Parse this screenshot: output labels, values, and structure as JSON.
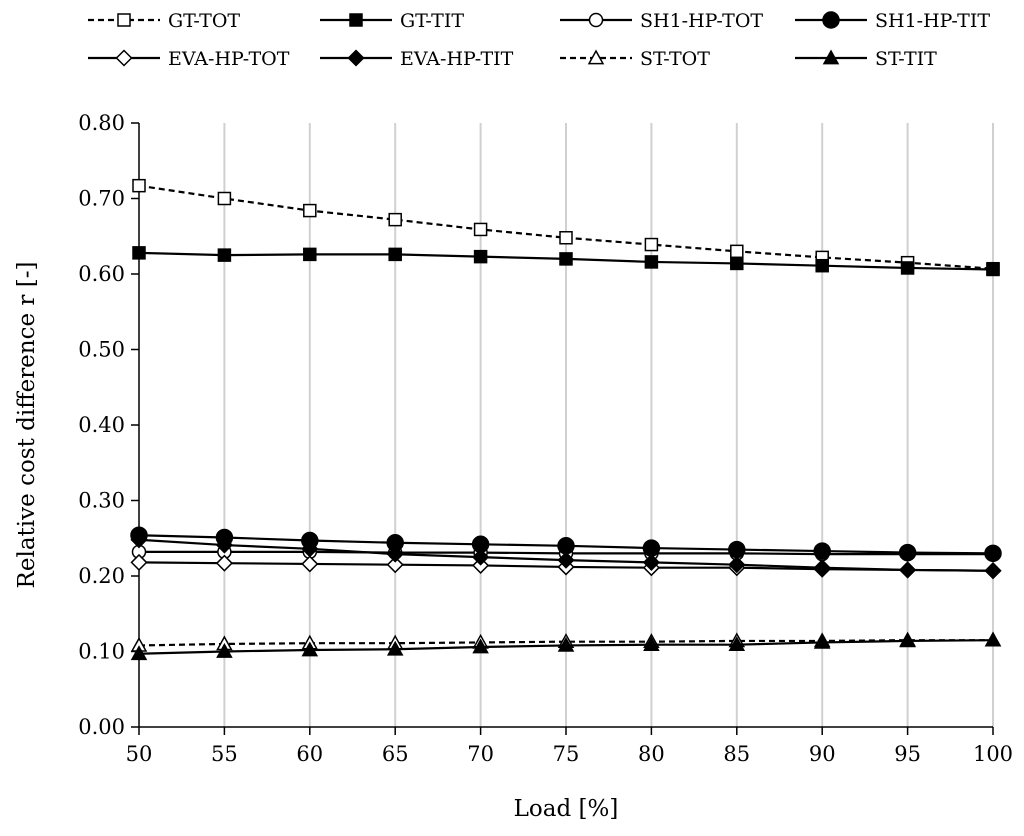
{
  "chart_data": {
    "type": "line",
    "title": "",
    "xlabel": "Load [%]",
    "ylabel": "Relative cost difference r [-]",
    "x": [
      50,
      55,
      60,
      65,
      70,
      75,
      80,
      85,
      90,
      95,
      100
    ],
    "xlim": [
      50,
      100
    ],
    "ylim": [
      0,
      0.8
    ],
    "y_ticks": [
      "0.00",
      "0.10",
      "0.20",
      "0.30",
      "0.40",
      "0.50",
      "0.60",
      "0.70",
      "0.80"
    ],
    "x_ticks": [
      "50",
      "55",
      "60",
      "65",
      "70",
      "75",
      "80",
      "85",
      "90",
      "95",
      "100"
    ],
    "grid": "vertical",
    "legend_position": "top",
    "series": [
      {
        "name": "GT-TOT",
        "marker": "square-open",
        "dashed": true,
        "values": [
          0.717,
          0.7,
          0.684,
          0.672,
          0.659,
          0.648,
          0.639,
          0.63,
          0.622,
          0.615,
          0.607
        ]
      },
      {
        "name": "GT-TIT",
        "marker": "square-filled",
        "dashed": false,
        "values": [
          0.628,
          0.625,
          0.626,
          0.626,
          0.623,
          0.62,
          0.616,
          0.614,
          0.611,
          0.608,
          0.606
        ]
      },
      {
        "name": "SH1-HP-TOT",
        "marker": "circle-open",
        "dashed": false,
        "values": [
          0.232,
          0.232,
          0.232,
          0.231,
          0.231,
          0.23,
          0.23,
          0.23,
          0.229,
          0.229,
          0.229
        ]
      },
      {
        "name": "SH1-HP-TIT",
        "marker": "circle-filled",
        "dashed": false,
        "values": [
          0.254,
          0.251,
          0.247,
          0.244,
          0.242,
          0.24,
          0.237,
          0.235,
          0.233,
          0.231,
          0.23
        ]
      },
      {
        "name": "EVA-HP-TOT",
        "marker": "diamond-open",
        "dashed": false,
        "values": [
          0.218,
          0.217,
          0.216,
          0.215,
          0.214,
          0.212,
          0.211,
          0.211,
          0.209,
          0.208,
          0.207
        ]
      },
      {
        "name": "EVA-HP-TIT",
        "marker": "diamond-filled",
        "dashed": false,
        "values": [
          0.248,
          0.241,
          0.236,
          0.229,
          0.225,
          0.221,
          0.218,
          0.215,
          0.211,
          0.208,
          0.207
        ]
      },
      {
        "name": "ST-TOT",
        "marker": "triangle-open",
        "dashed": true,
        "values": [
          0.108,
          0.11,
          0.111,
          0.111,
          0.112,
          0.113,
          0.113,
          0.114,
          0.114,
          0.115,
          0.115
        ]
      },
      {
        "name": "ST-TIT",
        "marker": "triangle-filled",
        "dashed": false,
        "values": [
          0.097,
          0.1,
          0.102,
          0.103,
          0.106,
          0.108,
          0.109,
          0.109,
          0.112,
          0.114,
          0.115
        ]
      }
    ]
  }
}
